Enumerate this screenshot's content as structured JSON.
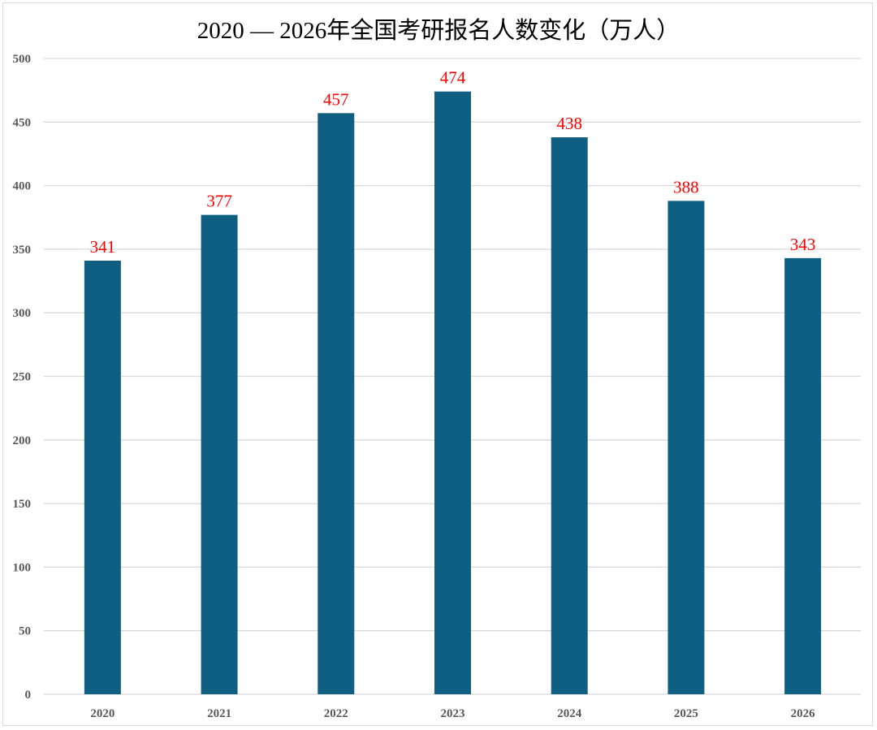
{
  "chart_data": {
    "type": "bar",
    "title": "2020 — 2026年全国考研报名人数变化（万人）",
    "xlabel": "",
    "ylabel": "",
    "categories": [
      "2020",
      "2021",
      "2022",
      "2023",
      "2024",
      "2025",
      "2026"
    ],
    "values": [
      341,
      377,
      457,
      474,
      438,
      388,
      343
    ],
    "data_labels": [
      "341",
      "377",
      "457",
      "474",
      "438",
      "388",
      "343"
    ],
    "ylim": [
      0,
      500
    ],
    "yticks": [
      "0",
      "50",
      "100",
      "150",
      "200",
      "250",
      "300",
      "350",
      "400",
      "450",
      "500"
    ],
    "grid": true,
    "legend": "none",
    "colors": {
      "bar": "#0f5f82",
      "data_label": "#ff0000",
      "grid": "#d9d9d9",
      "tick_label": "#595959"
    }
  }
}
